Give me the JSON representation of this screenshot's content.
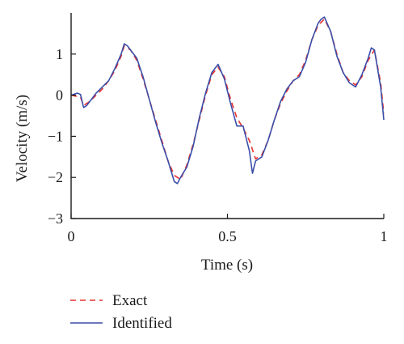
{
  "chart_data": {
    "type": "line",
    "xlabel": "Time (s)",
    "ylabel": "Velocity (m/s)",
    "xlim": [
      0,
      1
    ],
    "ylim": [
      -3,
      2
    ],
    "xticks": [
      0,
      0.5,
      1
    ],
    "xtick_labels": [
      "0",
      "0.5",
      "1"
    ],
    "yticks": [
      -3,
      -2,
      -1,
      0,
      1
    ],
    "ytick_labels": [
      "−3",
      "−2",
      "−1",
      "0",
      "1"
    ],
    "grid": false,
    "legend_position": "bottom-left, outside plot",
    "series": [
      {
        "name": "Exact",
        "color": "#e8312f",
        "style": "dashed",
        "x": [
          0,
          0.03,
          0.04,
          0.06,
          0.08,
          0.1,
          0.12,
          0.14,
          0.16,
          0.17,
          0.19,
          0.21,
          0.23,
          0.25,
          0.27,
          0.29,
          0.31,
          0.33,
          0.35,
          0.37,
          0.39,
          0.41,
          0.43,
          0.45,
          0.47,
          0.49,
          0.51,
          0.53,
          0.55,
          0.57,
          0.59,
          0.61,
          0.63,
          0.65,
          0.67,
          0.69,
          0.71,
          0.73,
          0.75,
          0.77,
          0.79,
          0.81,
          0.83,
          0.85,
          0.87,
          0.89,
          0.91,
          0.93,
          0.95,
          0.97,
          0.99,
          1.0
        ],
        "y": [
          0.0,
          -0.05,
          -0.25,
          -0.15,
          0.0,
          0.15,
          0.35,
          0.6,
          0.95,
          1.2,
          1.1,
          0.85,
          0.4,
          -0.1,
          -0.6,
          -1.1,
          -1.6,
          -1.95,
          -2.05,
          -1.7,
          -1.2,
          -0.6,
          0.0,
          0.5,
          0.68,
          0.45,
          -0.1,
          -0.55,
          -0.8,
          -1.1,
          -1.55,
          -1.45,
          -1.1,
          -0.6,
          -0.2,
          0.1,
          0.35,
          0.5,
          0.85,
          1.35,
          1.7,
          1.85,
          1.55,
          1.0,
          0.55,
          0.35,
          0.25,
          0.45,
          0.85,
          1.1,
          0.3,
          -0.45
        ]
      },
      {
        "name": "Identified",
        "color": "#3b4ea8",
        "style": "solid",
        "x": [
          0,
          0.02,
          0.03,
          0.04,
          0.05,
          0.06,
          0.08,
          0.1,
          0.12,
          0.14,
          0.16,
          0.17,
          0.18,
          0.19,
          0.21,
          0.23,
          0.25,
          0.27,
          0.29,
          0.31,
          0.33,
          0.34,
          0.35,
          0.37,
          0.39,
          0.41,
          0.43,
          0.45,
          0.47,
          0.49,
          0.51,
          0.53,
          0.55,
          0.57,
          0.58,
          0.59,
          0.61,
          0.63,
          0.65,
          0.67,
          0.69,
          0.71,
          0.73,
          0.75,
          0.77,
          0.79,
          0.8,
          0.81,
          0.83,
          0.85,
          0.87,
          0.89,
          0.91,
          0.93,
          0.95,
          0.96,
          0.97,
          0.99,
          1.0
        ],
        "y": [
          0.0,
          0.05,
          0.02,
          -0.3,
          -0.25,
          -0.15,
          0.05,
          0.2,
          0.35,
          0.65,
          1.0,
          1.25,
          1.2,
          1.1,
          0.9,
          0.45,
          -0.1,
          -0.65,
          -1.15,
          -1.6,
          -2.1,
          -2.15,
          -2.0,
          -1.75,
          -1.25,
          -0.55,
          0.05,
          0.55,
          0.75,
          0.4,
          -0.2,
          -0.75,
          -0.75,
          -1.35,
          -1.9,
          -1.6,
          -1.5,
          -1.1,
          -0.6,
          -0.15,
          0.15,
          0.35,
          0.45,
          0.8,
          1.35,
          1.75,
          1.85,
          1.9,
          1.55,
          0.95,
          0.55,
          0.3,
          0.2,
          0.5,
          0.9,
          1.15,
          1.1,
          0.2,
          -0.6
        ]
      }
    ]
  }
}
